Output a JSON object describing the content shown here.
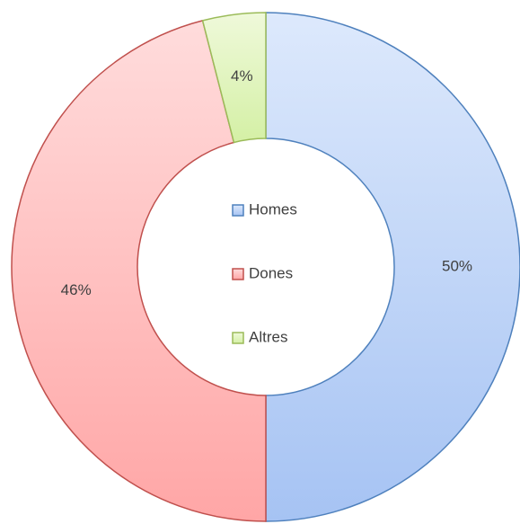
{
  "chart_data": {
    "type": "donut",
    "categories": [
      "Homes",
      "Dones",
      "Altres"
    ],
    "values": [
      50,
      46,
      4
    ],
    "value_labels": [
      "50%",
      "46%",
      "4%"
    ],
    "colors": [
      "#4f81bd",
      "#c0504d",
      "#9bbb59"
    ],
    "fills": [
      [
        "#dde9fc",
        "#a6c3f3"
      ],
      [
        "#ffdcdc",
        "#ffa6a6"
      ],
      [
        "#eff9da",
        "#d4f0a5"
      ]
    ],
    "legend": "center"
  }
}
